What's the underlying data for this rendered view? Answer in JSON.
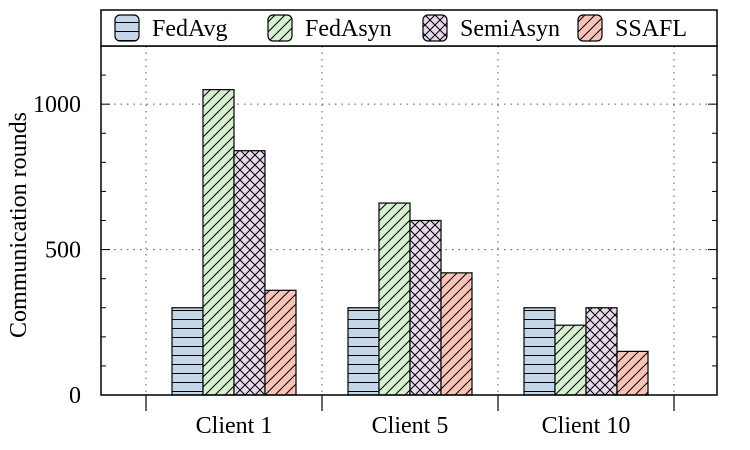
{
  "chart_data": {
    "type": "bar",
    "categories": [
      "Client 1",
      "Client 5",
      "Client 10"
    ],
    "series": [
      {
        "name": "FedAvg",
        "values": [
          300,
          300,
          300
        ],
        "color": "#c5d6e8",
        "pattern": "horizontal"
      },
      {
        "name": "FedAsyn",
        "values": [
          1050,
          660,
          240
        ],
        "color": "#d8f0d2",
        "pattern": "diagonal"
      },
      {
        "name": "SemiAsyn",
        "values": [
          840,
          600,
          300
        ],
        "color": "#e7d9eb",
        "pattern": "crosshatch"
      },
      {
        "name": "SSAFL",
        "values": [
          360,
          420,
          150
        ],
        "color": "#f9c3b8",
        "pattern": "diagonal"
      }
    ],
    "ylabel": "Communication rounds",
    "xlabel": "",
    "ylim": [
      0,
      1200
    ],
    "yticks": [
      0,
      500,
      1000
    ],
    "grid": true,
    "legend_position": "top"
  }
}
